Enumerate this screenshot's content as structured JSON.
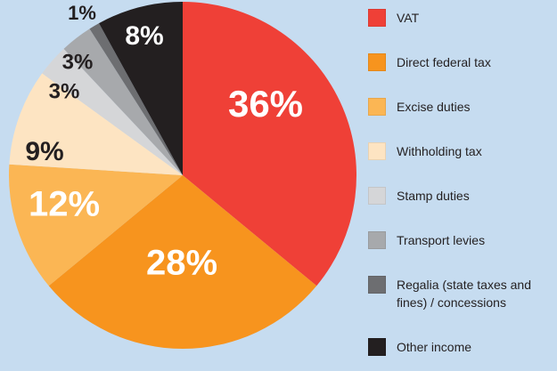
{
  "chart_data": {
    "type": "pie",
    "categories": [
      "VAT",
      "Direct federal tax",
      "Excise duties",
      "Withholding tax",
      "Stamp duties",
      "Transport levies",
      "Regalia (state taxes and fines) / concessions",
      "Other income"
    ],
    "values": [
      36,
      28,
      12,
      9,
      3,
      3,
      1,
      8
    ],
    "value_labels": [
      "36%",
      "28%",
      "12%",
      "9%",
      "3%",
      "3%",
      "1%",
      "8%"
    ],
    "colors": [
      "#ef4037",
      "#f7941e",
      "#fbb654",
      "#fde4c2",
      "#d5d6d8",
      "#a7a9ac",
      "#6d6e71",
      "#231f20"
    ],
    "label_colors": [
      "#ffffff",
      "#ffffff",
      "#ffffff",
      "#231f20",
      "#231f20",
      "#231f20",
      "#231f20",
      "#ffffff"
    ]
  }
}
